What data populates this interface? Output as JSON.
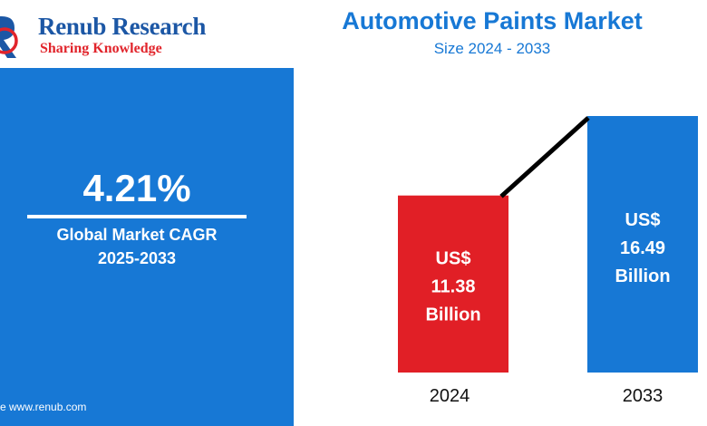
{
  "brand": {
    "name": "Renub Research",
    "tagline": "Sharing Knowledge",
    "colors": {
      "primary": "#1c57a5",
      "accent": "#e1242b"
    }
  },
  "header": {
    "title": "Automotive Paints Market",
    "subtitle": "Size 2024 - 2033"
  },
  "cagr_panel": {
    "value": "4.21%",
    "label": "Global Market CAGR",
    "period": "2025-2033",
    "source": "rce  www.renub.com",
    "background": "#1778d5"
  },
  "chart_data": {
    "type": "bar",
    "categories": [
      "2024",
      "2033"
    ],
    "values": [
      11.38,
      16.49
    ],
    "unit": "US$ Billion",
    "bar_labels": [
      [
        "US$",
        "11.38",
        "Billion"
      ],
      [
        "US$",
        "16.49",
        "Billion"
      ]
    ],
    "bar_colors": [
      "#e11f26",
      "#1778d5"
    ],
    "connector": true,
    "title": "Automotive Paints Market",
    "subtitle": "Size 2024 - 2033"
  }
}
